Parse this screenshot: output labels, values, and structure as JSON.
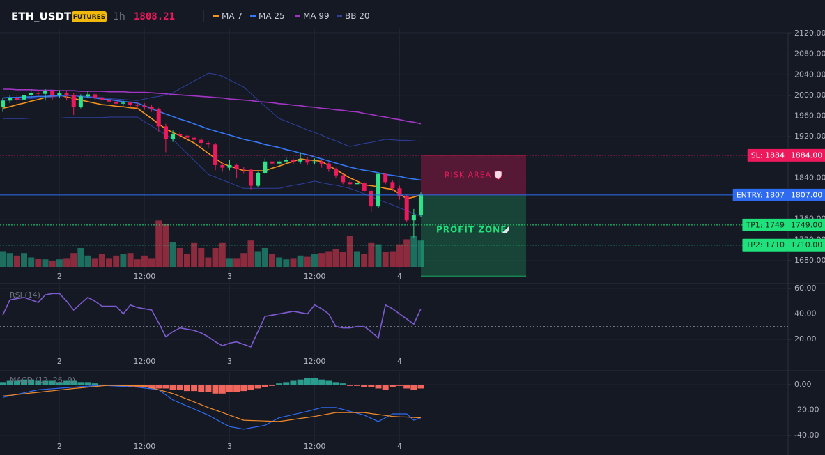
{
  "chart_data": [
    {
      "type": "candlestick",
      "title": "ETH_USDT",
      "badge": "FUTURES",
      "interval": "1h",
      "last_price": 1808.21,
      "categories": [
        null,
        null,
        null,
        null,
        null,
        null,
        null,
        null,
        "2",
        null,
        null,
        null,
        null,
        null,
        null,
        null,
        null,
        null,
        null,
        null,
        "12:00",
        null,
        null,
        null,
        null,
        null,
        null,
        null,
        null,
        null,
        null,
        null,
        "3",
        null,
        null,
        null,
        null,
        null,
        null,
        null,
        null,
        null,
        null,
        null,
        "12:00",
        null,
        null,
        null,
        null,
        null,
        null,
        null,
        null,
        null,
        null,
        null,
        "4",
        null,
        null,
        null
      ],
      "open": [
        1978,
        1990,
        1995,
        1992,
        2000,
        2005,
        2003,
        2008,
        2000,
        2004,
        2000,
        1978,
        1998,
        2002,
        1996,
        1992,
        1988,
        1984,
        1986,
        1982,
        1980,
        1978,
        1974,
        1940,
        1915,
        1925,
        1922,
        1918,
        1914,
        1908,
        1905,
        1865,
        1860,
        1865,
        1858,
        1856,
        1825,
        1850,
        1872,
        1868,
        1872,
        1875,
        1872,
        1876,
        1870,
        1872,
        1868,
        1858,
        1845,
        1832,
        1828,
        1830,
        1815,
        1785,
        1848,
        1832,
        1820,
        1805,
        1758,
        1768
      ],
      "high": [
        1995,
        2000,
        2002,
        2005,
        2012,
        2010,
        2012,
        2010,
        2010,
        2008,
        2005,
        2002,
        2008,
        2004,
        1998,
        1995,
        1992,
        1990,
        1988,
        1986,
        1985,
        1982,
        1976,
        1945,
        1932,
        1930,
        1928,
        1925,
        1918,
        1912,
        1908,
        1870,
        1875,
        1868,
        1862,
        1858,
        1852,
        1878,
        1875,
        1876,
        1880,
        1878,
        1890,
        1880,
        1878,
        1875,
        1870,
        1860,
        1848,
        1838,
        1836,
        1834,
        1818,
        1850,
        1850,
        1835,
        1825,
        1808,
        1780,
        1812
      ],
      "low": [
        1968,
        1985,
        1985,
        1988,
        1996,
        1998,
        1990,
        1992,
        1995,
        1990,
        1962,
        1975,
        1995,
        1990,
        1985,
        1982,
        1978,
        1980,
        1976,
        1974,
        1972,
        1968,
        1930,
        1890,
        1910,
        1915,
        1900,
        1895,
        1900,
        1898,
        1855,
        1852,
        1855,
        1840,
        1848,
        1818,
        1822,
        1848,
        1862,
        1862,
        1868,
        1866,
        1868,
        1865,
        1866,
        1860,
        1852,
        1840,
        1828,
        1818,
        1822,
        1808,
        1775,
        1782,
        1828,
        1815,
        1798,
        1755,
        1725,
        1765
      ],
      "close": [
        1990,
        1995,
        1992,
        2000,
        2005,
        2003,
        2008,
        2000,
        2004,
        2000,
        1978,
        1998,
        2002,
        1996,
        1992,
        1988,
        1984,
        1986,
        1982,
        1980,
        1978,
        1974,
        1940,
        1915,
        1925,
        1922,
        1918,
        1914,
        1908,
        1905,
        1865,
        1860,
        1865,
        1858,
        1856,
        1825,
        1850,
        1872,
        1868,
        1872,
        1875,
        1872,
        1876,
        1870,
        1872,
        1868,
        1858,
        1845,
        1832,
        1828,
        1830,
        1815,
        1785,
        1848,
        1832,
        1820,
        1805,
        1758,
        1768,
        1808.21
      ],
      "up_color": "#2ee38a",
      "down_color": "#ec1a5c",
      "volume": [
        25,
        22,
        18,
        22,
        15,
        13,
        12,
        10,
        12,
        14,
        22,
        30,
        18,
        14,
        20,
        14,
        18,
        20,
        22,
        12,
        18,
        14,
        74,
        68,
        39,
        30,
        20,
        38,
        30,
        15,
        30,
        38,
        14,
        14,
        22,
        42,
        25,
        30,
        20,
        15,
        12,
        14,
        18,
        16,
        20,
        22,
        25,
        28,
        24,
        50,
        25,
        20,
        38,
        36,
        24,
        25,
        36,
        44,
        50,
        42
      ],
      "volume_lim": [
        0,
        100
      ],
      "volume_up_color": "#1d6e5e",
      "volume_down_color": "#8c2b3d",
      "series": [
        {
          "name": "MA 7",
          "color": "#f7931a",
          "values": [
            1975,
            1978,
            1982,
            1985,
            1989,
            1992,
            1996,
            1998,
            2000,
            1997,
            1994,
            1991,
            1988,
            1985,
            1982,
            1981,
            1979,
            1978,
            1976,
            1975,
            1965,
            1955,
            1945,
            1935,
            1928,
            1922,
            1915,
            1908,
            1898,
            1888,
            1878,
            1868,
            1863,
            1859,
            1854,
            1854,
            1854,
            1854,
            1859,
            1863,
            1868,
            1872,
            1877,
            1875,
            1874,
            1872,
            1864,
            1856,
            1848,
            1840,
            1834,
            1827,
            1825,
            1823,
            1820,
            1818,
            1809,
            1800,
            1803,
            1807
          ]
        },
        {
          "name": "MA 25",
          "color": "#3478f6",
          "values": [
            1995,
            1996,
            1996,
            1997,
            1997,
            1998,
            1998,
            1999,
            1999,
            2000,
            2000,
            1998,
            1997,
            1995,
            1993,
            1992,
            1990,
            1988,
            1987,
            1985,
            1980,
            1974,
            1969,
            1964,
            1959,
            1954,
            1950,
            1945,
            1940,
            1935,
            1931,
            1927,
            1923,
            1919,
            1915,
            1912,
            1909,
            1905,
            1902,
            1899,
            1895,
            1892,
            1888,
            1885,
            1881,
            1877,
            1873,
            1869,
            1865,
            1861,
            1858,
            1855,
            1853,
            1850,
            1847,
            1845,
            1843,
            1840,
            1838,
            1836
          ]
        },
        {
          "name": "MA 99",
          "color": "#a335c4",
          "values": [
            2012,
            2012,
            2011,
            2011,
            2011,
            2010,
            2010,
            2010,
            2009,
            2009,
            2009,
            2008,
            2008,
            2008,
            2008,
            2007,
            2007,
            2007,
            2006,
            2006,
            2006,
            2005,
            2004,
            2003,
            2002,
            2001,
            2000,
            1999,
            1998,
            1997,
            1996,
            1995,
            1993,
            1992,
            1991,
            1990,
            1988,
            1987,
            1986,
            1984,
            1983,
            1981,
            1980,
            1978,
            1977,
            1975,
            1974,
            1972,
            1971,
            1969,
            1968,
            1965,
            1963,
            1960,
            1958,
            1955,
            1953,
            1950,
            1948,
            1945
          ]
        },
        {
          "name": "BB 20",
          "color": "#2f3f9e",
          "values": [
            1990,
            1991,
            1992,
            1993,
            1994,
            1995,
            1996,
            1997,
            1998,
            1999,
            2000,
            1999,
            1998,
            1997,
            1996,
            1994,
            1993,
            1992,
            1991,
            1990,
            1993,
            1996,
            1998,
            2001,
            2005,
            2013,
            2020,
            2028,
            2035,
            2043,
            2041,
            2037,
            2030,
            2023,
            2016,
            2004,
            1991,
            1979,
            1967,
            1955,
            1950,
            1944,
            1939,
            1933,
            1928,
            1923,
            1917,
            1912,
            1906,
            1901,
            1904,
            1907,
            1909,
            1912,
            1915,
            1914,
            1913,
            1913,
            1912,
            1911
          ],
          "lower": [
            1955,
            1955,
            1955,
            1955,
            1956,
            1956,
            1956,
            1956,
            1956,
            1957,
            1957,
            1957,
            1957,
            1957,
            1957,
            1958,
            1958,
            1958,
            1958,
            1958,
            1949,
            1941,
            1932,
            1924,
            1915,
            1901,
            1888,
            1874,
            1861,
            1847,
            1842,
            1836,
            1831,
            1825,
            1820,
            1820,
            1820,
            1820,
            1820,
            1820,
            1823,
            1826,
            1828,
            1831,
            1834,
            1831,
            1828,
            1826,
            1823,
            1820,
            1815,
            1809,
            1804,
            1798,
            1793,
            1788,
            1782,
            1777,
            1771,
            1766
          ]
        }
      ],
      "levels": [
        {
          "value": 1884,
          "label": "SL: 1884",
          "price_label": "1884.00",
          "color": "#ec1a5c",
          "style": "dotted"
        },
        {
          "value": 1807,
          "label": "ENTRY: 1807",
          "price_label": "1807.00",
          "color": "#2f6bf0",
          "style": "solid"
        },
        {
          "value": 1749,
          "label": "TP1: 1749",
          "price_label": "1749.00",
          "color": "#1fe07a",
          "style": "dotted"
        },
        {
          "value": 1710,
          "label": "TP2: 1710",
          "price_label": "1710.00",
          "color": "#1fe07a",
          "style": "dotted"
        }
      ],
      "zones": [
        {
          "label": "RISK AREA",
          "from": 1807,
          "to": 1884,
          "color": "#ec1a5c"
        },
        {
          "label": "PROFIT ZONE",
          "from": 1650,
          "to": 1807,
          "color": "#1fe07a"
        }
      ],
      "ylim": [
        1640,
        2130
      ],
      "yticks": [
        {
          "value": 2120,
          "label": "2120.00"
        },
        {
          "value": 2080,
          "label": "2080.00"
        },
        {
          "value": 2040,
          "label": "2040.00"
        },
        {
          "value": 2000,
          "label": "2000.00"
        },
        {
          "value": 1960,
          "label": "1960.00"
        },
        {
          "value": 1920,
          "label": "1920.00"
        },
        {
          "value": 1880,
          "label": "1880.00"
        },
        {
          "value": 1840,
          "label": "1840.00"
        },
        {
          "value": 1800,
          "label": "1800.00"
        },
        {
          "value": 1760,
          "label": "1760.00"
        },
        {
          "value": 1720,
          "label": "1720.00"
        },
        {
          "value": 1680,
          "label": "1680.00"
        }
      ],
      "grid": true
    },
    {
      "type": "line",
      "title": "RSI (14)",
      "color": "#7e5bd0",
      "categories": [
        null,
        null,
        null,
        null,
        null,
        null,
        null,
        null,
        "2",
        null,
        null,
        null,
        null,
        null,
        null,
        null,
        null,
        null,
        null,
        null,
        "12:00",
        null,
        null,
        null,
        null,
        null,
        null,
        null,
        null,
        null,
        null,
        null,
        "3",
        null,
        null,
        null,
        null,
        null,
        null,
        null,
        null,
        null,
        null,
        null,
        "12:00",
        null,
        null,
        null,
        null,
        null,
        null,
        null,
        null,
        null,
        null,
        null,
        "4",
        null,
        null,
        null
      ],
      "values": [
        39,
        51,
        52,
        53,
        51,
        49,
        55,
        56,
        56,
        50,
        43,
        48,
        53,
        50,
        46,
        46,
        46,
        40,
        47,
        45,
        44,
        43,
        33,
        22,
        26,
        29,
        28,
        27,
        25,
        22,
        18,
        15,
        17,
        18,
        16,
        14,
        26,
        38,
        39,
        40,
        41,
        42,
        41,
        40,
        47,
        44,
        40,
        30,
        29,
        29,
        30,
        30,
        26,
        21,
        47,
        44,
        40,
        36,
        32,
        44
      ],
      "levels": [
        30
      ],
      "ylim": [
        0,
        63
      ],
      "yticks": [
        {
          "value": 60,
          "label": "60.00"
        },
        {
          "value": 40,
          "label": "40.00"
        },
        {
          "value": 20,
          "label": "20.00"
        }
      ],
      "grid": true
    },
    {
      "type": "macd",
      "title": "MACD (12, 26, 9)",
      "categories": [
        null,
        null,
        null,
        null,
        null,
        null,
        null,
        null,
        "2",
        null,
        null,
        null,
        null,
        null,
        null,
        null,
        null,
        null,
        null,
        null,
        "12:00",
        null,
        null,
        null,
        null,
        null,
        null,
        null,
        null,
        null,
        null,
        null,
        "3",
        null,
        null,
        null,
        null,
        null,
        null,
        null,
        null,
        null,
        null,
        null,
        "12:00",
        null,
        null,
        null,
        null,
        null,
        null,
        null,
        null,
        null,
        null,
        null,
        "4",
        null,
        null,
        null
      ],
      "histogram": [
        2,
        3,
        3,
        4,
        4,
        3,
        3,
        3,
        2,
        3,
        3,
        2,
        2,
        1,
        -1,
        -1,
        -1,
        -2,
        -2,
        -2,
        -2,
        -3,
        -3,
        -3,
        -4,
        -4,
        -5,
        -5,
        -6,
        -6,
        -7,
        -7,
        -6,
        -6,
        -5,
        -4,
        -3,
        -2,
        -1,
        1,
        2,
        3,
        4,
        5,
        5,
        4,
        3,
        2,
        1,
        -1,
        -1,
        -2,
        -2,
        -3,
        -4,
        -2,
        -1,
        -3,
        -4,
        -3
      ],
      "up_color": "#2b9d8e",
      "down_color": "#f0655c",
      "series": [
        {
          "name": "MACD",
          "color": "#2f6bf0",
          "values": [
            -10,
            -8.8,
            -7.6,
            -6.4,
            -5.2,
            -4,
            -3.6,
            -3.2,
            -2.8,
            -2.4,
            -2,
            -1.6,
            -1.2,
            -0.9,
            -0.5,
            -0.8,
            -1.1,
            -1.4,
            -1.7,
            -2,
            -2.7,
            -3.3,
            -4,
            -8,
            -12,
            -14.4,
            -16.8,
            -19.2,
            -21.6,
            -24,
            -27,
            -30,
            -33,
            -34,
            -35,
            -34,
            -33,
            -32,
            -29,
            -26,
            -24.8,
            -23.5,
            -22.3,
            -21,
            -19.5,
            -18,
            -18,
            -18,
            -19.5,
            -21,
            -22.5,
            -24,
            -26.5,
            -29,
            -26,
            -23,
            -23,
            -23,
            -28,
            -26
          ]
        },
        {
          "name": "Signal",
          "color": "#f0892a",
          "values": [
            -9,
            -8.4,
            -7.8,
            -7.2,
            -6.6,
            -6,
            -5.4,
            -4.8,
            -4.2,
            -3.6,
            -3,
            -2.5,
            -2,
            -1.5,
            -1,
            -0.5,
            -0.6,
            -0.7,
            -0.8,
            -0.9,
            -1,
            -2.5,
            -4,
            -5.5,
            -7,
            -9.2,
            -11.4,
            -13.6,
            -15.8,
            -18,
            -20,
            -22,
            -24,
            -26,
            -28,
            -28.2,
            -28.4,
            -28.6,
            -28.8,
            -29,
            -28.2,
            -27.4,
            -26.6,
            -25.8,
            -25,
            -24,
            -23,
            -22,
            -22,
            -22,
            -22,
            -22,
            -22.8,
            -23.5,
            -24.3,
            -25,
            -25.3,
            -25.5,
            -25.8,
            -26
          ]
        }
      ],
      "ylim": [
        -50,
        10
      ],
      "yticks": [
        {
          "value": 0,
          "label": "0.00"
        },
        {
          "value": -20,
          "label": "-20.00"
        },
        {
          "value": -40,
          "label": "-40.00"
        }
      ],
      "grid": true
    }
  ]
}
